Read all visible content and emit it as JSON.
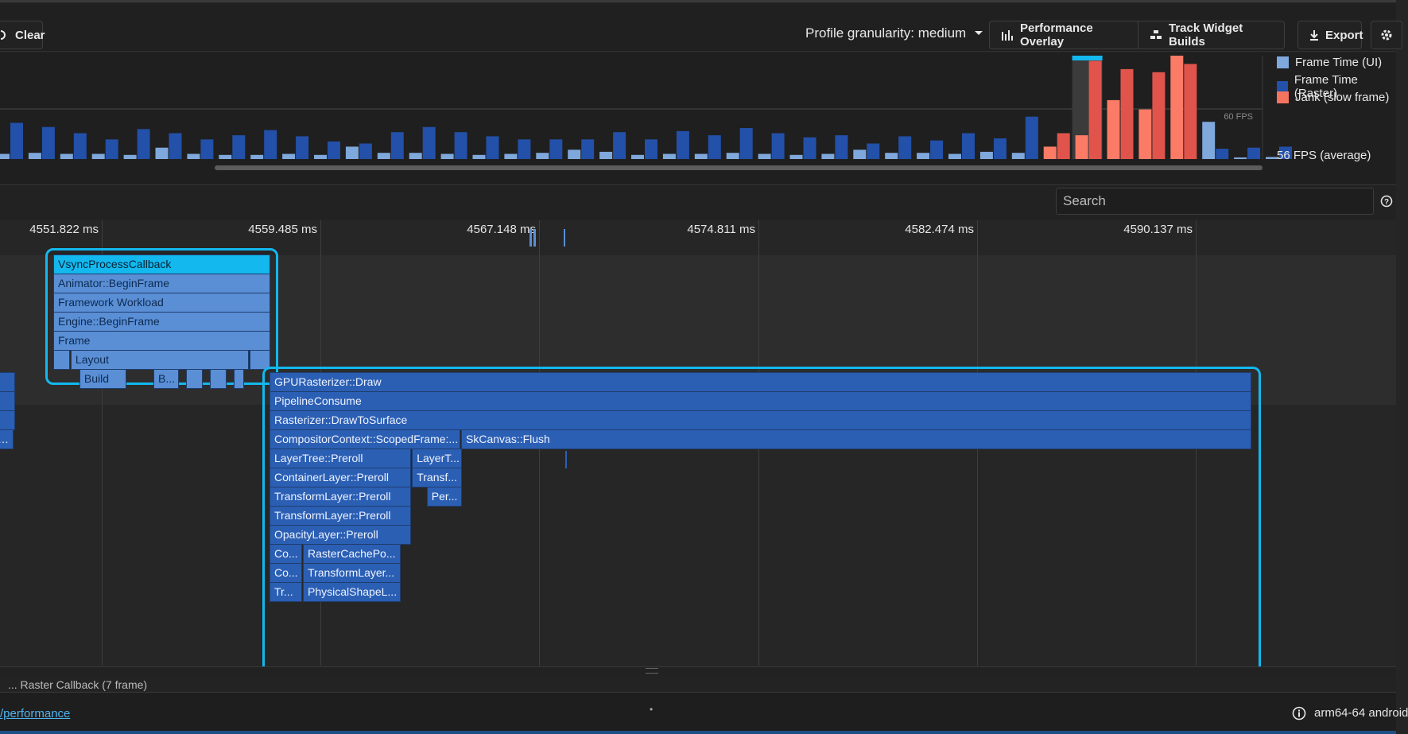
{
  "toolbar": {
    "clear_label": "Clear",
    "granularity_label": "Profile granularity: medium",
    "performance_overlay_label": "Performance Overlay",
    "track_widget_builds_label": "Track Widget Builds",
    "export_label": "Export"
  },
  "frame_chart": {
    "fps_line_label": "60 FPS",
    "average_label": "56 FPS (average)",
    "legend": [
      {
        "label": "Frame Time (UI)",
        "color": "#7fa8dc"
      },
      {
        "label": "Frame Time (Raster)",
        "color": "#2350a8"
      },
      {
        "label": "Jank (slow frame)",
        "color": "#f4745f"
      }
    ],
    "colors": {
      "ui": "#7fa8dc",
      "raster": "#2350a8",
      "jank_ui": "#fb7b66",
      "jank_raster": "#e0544c",
      "selected": "#13b8ee"
    },
    "frames": [
      {
        "ui": 0.05,
        "raster": 0.35
      },
      {
        "ui": 0.06,
        "raster": 0.31
      },
      {
        "ui": 0.05,
        "raster": 0.25
      },
      {
        "ui": 0.05,
        "raster": 0.19
      },
      {
        "ui": 0.04,
        "raster": 0.29
      },
      {
        "ui": 0.11,
        "raster": 0.25
      },
      {
        "ui": 0.05,
        "raster": 0.19
      },
      {
        "ui": 0.04,
        "raster": 0.23
      },
      {
        "ui": 0.04,
        "raster": 0.28
      },
      {
        "ui": 0.05,
        "raster": 0.22
      },
      {
        "ui": 0.04,
        "raster": 0.17
      },
      {
        "ui": 0.12,
        "raster": 0.15
      },
      {
        "ui": 0.06,
        "raster": 0.26
      },
      {
        "ui": 0.06,
        "raster": 0.31
      },
      {
        "ui": 0.05,
        "raster": 0.26
      },
      {
        "ui": 0.04,
        "raster": 0.22
      },
      {
        "ui": 0.05,
        "raster": 0.19
      },
      {
        "ui": 0.06,
        "raster": 0.19
      },
      {
        "ui": 0.09,
        "raster": 0.19
      },
      {
        "ui": 0.07,
        "raster": 0.26
      },
      {
        "ui": 0.04,
        "raster": 0.19
      },
      {
        "ui": 0.05,
        "raster": 0.27
      },
      {
        "ui": 0.05,
        "raster": 0.23
      },
      {
        "ui": 0.06,
        "raster": 0.3
      },
      {
        "ui": 0.05,
        "raster": 0.25
      },
      {
        "ui": 0.04,
        "raster": 0.21
      },
      {
        "ui": 0.05,
        "raster": 0.23
      },
      {
        "ui": 0.09,
        "raster": 0.15
      },
      {
        "ui": 0.06,
        "raster": 0.22
      },
      {
        "ui": 0.06,
        "raster": 0.18
      },
      {
        "ui": 0.05,
        "raster": 0.25
      },
      {
        "ui": 0.07,
        "raster": 0.2
      },
      {
        "ui": 0.06,
        "raster": 0.41
      },
      {
        "ui": 0.12,
        "raster": 0.25,
        "jank": true
      },
      {
        "ui": 0.23,
        "raster": 0.95,
        "jank": true,
        "selected": true
      },
      {
        "ui": 0.57,
        "raster": 0.87,
        "jank": true
      },
      {
        "ui": 0.48,
        "raster": 0.84,
        "jank": true
      },
      {
        "ui": 1.0,
        "raster": 0.92,
        "jank": true
      },
      {
        "ui": 0.36,
        "raster": 0.1
      },
      {
        "ui": 0.01,
        "raster": 0.11
      },
      {
        "ui": 0.02,
        "raster": 0.12
      }
    ]
  },
  "search": {
    "placeholder": "Search"
  },
  "timeline": {
    "ticks": [
      "4551.822 ms",
      "4559.485 ms",
      "4567.148 ms",
      "4574.811 ms",
      "4582.474 ms",
      "4590.137 ms"
    ],
    "ui_events": [
      {
        "label": "VsyncProcessCallback",
        "row": 0,
        "x": 0,
        "w": 1,
        "selected": true
      },
      {
        "label": "Animator::BeginFrame",
        "row": 1,
        "x": 0,
        "w": 1
      },
      {
        "label": "Framework Workload",
        "row": 2,
        "x": 0,
        "w": 1
      },
      {
        "label": "Engine::BeginFrame",
        "row": 3,
        "x": 0,
        "w": 1
      },
      {
        "label": "Frame",
        "row": 4,
        "x": 0,
        "w": 1
      },
      {
        "label": "",
        "row": 5,
        "x": 0.0,
        "w": 0.08
      },
      {
        "label": "Layout",
        "row": 5,
        "x": 0.08,
        "w": 0.82
      },
      {
        "label": "",
        "row": 5,
        "x": 0.9,
        "w": 0.1
      },
      {
        "label": "Build",
        "row": 6,
        "x": 0.12,
        "w": 0.22
      },
      {
        "label": "B...",
        "row": 6,
        "x": 0.46,
        "w": 0.12
      },
      {
        "label": "",
        "row": 6,
        "x": 0.61,
        "w": 0.08
      },
      {
        "label": "",
        "row": 6,
        "x": 0.72,
        "w": 0.08
      },
      {
        "label": "",
        "row": 6,
        "x": 0.83,
        "w": 0.05
      }
    ],
    "raster_events": [
      {
        "label": "GPURasterizer::Draw",
        "row": 0,
        "x": 0.0,
        "w": 1.0
      },
      {
        "label": "PipelineConsume",
        "row": 1,
        "x": 0.0,
        "w": 1.0
      },
      {
        "label": "Rasterizer::DrawToSurface",
        "row": 2,
        "x": 0.0,
        "w": 1.0
      },
      {
        "label": "CompositorContext::ScopedFrame:...",
        "row": 3,
        "x": 0.0,
        "w": 0.195
      },
      {
        "label": "SkCanvas::Flush",
        "row": 3,
        "x": 0.195,
        "w": 0.805
      },
      {
        "label": "LayerTree::Preroll",
        "row": 4,
        "x": 0.0,
        "w": 0.145
      },
      {
        "label": "LayerT...",
        "row": 4,
        "x": 0.145,
        "w": 0.052
      },
      {
        "label": "ContainerLayer::Preroll",
        "row": 5,
        "x": 0.0,
        "w": 0.145
      },
      {
        "label": "Transf...",
        "row": 5,
        "x": 0.145,
        "w": 0.052
      },
      {
        "label": "TransformLayer::Preroll",
        "row": 6,
        "x": 0.0,
        "w": 0.145
      },
      {
        "label": "Per...",
        "row": 6,
        "x": 0.16,
        "w": 0.037
      },
      {
        "label": "TransformLayer::Preroll",
        "row": 7,
        "x": 0.0,
        "w": 0.145
      },
      {
        "label": "OpacityLayer::Preroll",
        "row": 8,
        "x": 0.0,
        "w": 0.145
      },
      {
        "label": "Co...",
        "row": 9,
        "x": 0.0,
        "w": 0.034
      },
      {
        "label": "RasterCachePo...",
        "row": 9,
        "x": 0.034,
        "w": 0.1
      },
      {
        "label": "Co...",
        "row": 10,
        "x": 0.0,
        "w": 0.034
      },
      {
        "label": "TransformLayer...",
        "row": 10,
        "x": 0.034,
        "w": 0.1
      },
      {
        "label": "Tr...",
        "row": 11,
        "x": 0.0,
        "w": 0.034
      },
      {
        "label": "PhysicalShapeL...",
        "row": 11,
        "x": 0.034,
        "w": 0.1
      }
    ]
  },
  "bottom_panel": {
    "peek_text": "... Raster Callback (7 frame)"
  },
  "status": {
    "link": "/performance",
    "center": "•",
    "device": "arm64-64 android"
  }
}
